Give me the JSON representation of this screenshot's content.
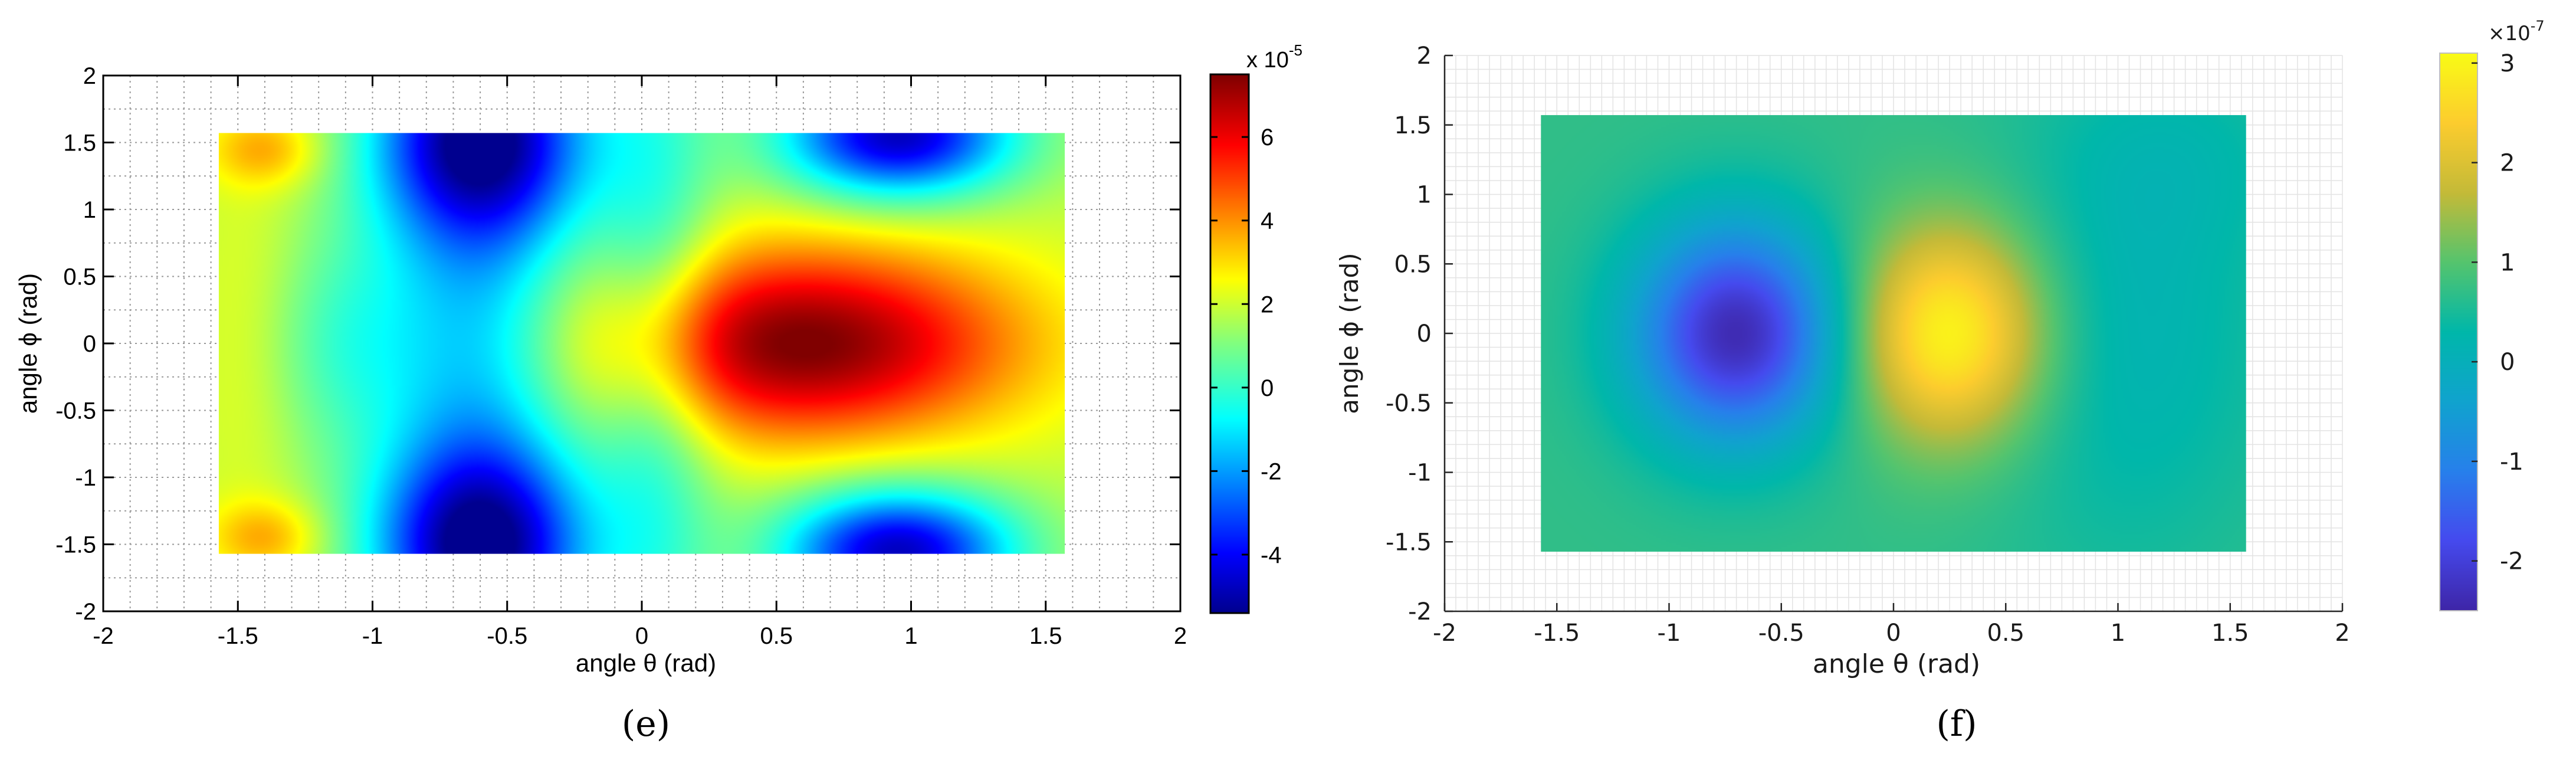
{
  "chart_data": [
    {
      "type": "heatmap",
      "panel_label": "(e)",
      "xlabel": "angle θ (rad)",
      "ylabel": "angle ϕ (rad)",
      "xlim": [
        -2,
        2
      ],
      "ylim": [
        -2,
        2
      ],
      "x_ticks": [
        -2,
        -1.5,
        -1,
        -0.5,
        0,
        0.5,
        1,
        1.5,
        2
      ],
      "y_ticks": [
        -2,
        -1.5,
        -1,
        -0.5,
        0,
        0.5,
        1,
        1.5,
        2
      ],
      "x_tick_labels": [
        "-2",
        "-1.5",
        "-1",
        "-0.5",
        "0",
        "0.5",
        "1",
        "1.5",
        "2"
      ],
      "y_tick_labels": [
        "-2",
        "-1.5",
        "-1",
        "-0.5",
        "0",
        "0.5",
        "1",
        "1.5",
        "2"
      ],
      "data_extent": {
        "x": [
          -1.5708,
          1.5708
        ],
        "y": [
          -1.5708,
          1.5708
        ]
      },
      "grid": "dotted",
      "colormap": "jet",
      "colorbar": {
        "multiplier_label": "x 10",
        "exponent": "-5",
        "range": [
          -5.4,
          7.5
        ],
        "ticks": [
          -4,
          -2,
          0,
          2,
          4,
          6
        ],
        "tick_labels": [
          "-4",
          "-2",
          "0",
          "2",
          "4",
          "6"
        ]
      },
      "features": [
        {
          "x": 0.6,
          "y": 0.0,
          "value": 7.4,
          "kind": "max"
        },
        {
          "x": -0.6,
          "y": 1.5,
          "value": -5.2,
          "kind": "min"
        },
        {
          "x": -0.6,
          "y": -1.5,
          "value": -5.2,
          "kind": "min"
        },
        {
          "x": 0.95,
          "y": 1.5,
          "value": -4.8,
          "kind": "min"
        },
        {
          "x": 0.95,
          "y": -1.5,
          "value": -4.8,
          "kind": "min"
        },
        {
          "x": -1.4,
          "y": 1.45,
          "value": 4.0,
          "kind": "local max"
        },
        {
          "x": -1.4,
          "y": -1.45,
          "value": 4.0,
          "kind": "local max"
        }
      ]
    },
    {
      "type": "heatmap",
      "panel_label": "(f)",
      "xlabel": "angle θ (rad)",
      "ylabel": "angle ϕ (rad)",
      "xlim": [
        -2,
        2
      ],
      "ylim": [
        -2,
        2
      ],
      "x_ticks": [
        -2,
        -1.5,
        -1,
        -0.5,
        0,
        0.5,
        1,
        1.5,
        2
      ],
      "y_ticks": [
        -2,
        -1.5,
        -1,
        -0.5,
        0,
        0.5,
        1,
        1.5,
        2
      ],
      "x_tick_labels": [
        "-2",
        "-1.5",
        "-1",
        "-0.5",
        "0",
        "0.5",
        "1",
        "1.5",
        "2"
      ],
      "y_tick_labels": [
        "-2",
        "-1.5",
        "-1",
        "-0.5",
        "0",
        "0.5",
        "1",
        "1.5",
        "2"
      ],
      "data_extent": {
        "x": [
          -1.5708,
          1.5708
        ],
        "y": [
          -1.5708,
          1.5708
        ]
      },
      "grid": "fine",
      "colormap": "parula",
      "colorbar": {
        "multiplier_label": "×10",
        "exponent": "-7",
        "range": [
          -2.5,
          3.1
        ],
        "ticks": [
          -2,
          -1,
          0,
          1,
          2,
          3
        ],
        "tick_labels": [
          "-2",
          "-1",
          "0",
          "1",
          "2",
          "3"
        ]
      },
      "features": [
        {
          "x": -0.7,
          "y": 0.0,
          "value": -2.4,
          "kind": "min"
        },
        {
          "x": 0.25,
          "y": 0.0,
          "value": 3.0,
          "kind": "max"
        },
        {
          "x": 1.0,
          "y": 0.0,
          "value": 0.2,
          "kind": "saddle"
        }
      ]
    }
  ]
}
